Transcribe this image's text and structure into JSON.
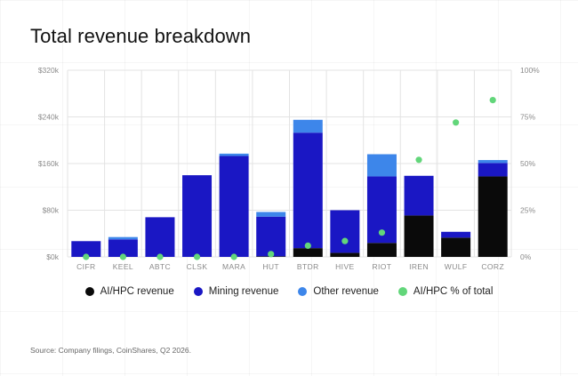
{
  "title": "Total revenue breakdown",
  "source": "Source: Company filings, CoinShares, Q2 2026.",
  "colors": {
    "ai_hpc": "#0a0a0a",
    "mining": "#1a17c4",
    "other": "#3d86ea",
    "pct": "#62d67a",
    "grid": "#e3e3e3",
    "axis_text": "#8a8a8a"
  },
  "legend": [
    {
      "label": "AI/HPC revenue",
      "color": "#0a0a0a"
    },
    {
      "label": "Mining revenue",
      "color": "#1a17c4"
    },
    {
      "label": "Other revenue",
      "color": "#3d86ea"
    },
    {
      "label": "AI/HPC % of total",
      "color": "#62d67a"
    }
  ],
  "chart_data": {
    "type": "bar",
    "stacked": true,
    "title": "Total revenue breakdown",
    "categories": [
      "CIFR",
      "KEEL",
      "ABTC",
      "CLSK",
      "MARA",
      "HUT",
      "BTDR",
      "HIVE",
      "RIOT",
      "IREN",
      "WULF",
      "CORZ"
    ],
    "series": [
      {
        "name": "AI/HPC revenue",
        "values": [
          0,
          0,
          0,
          0,
          0,
          1,
          15,
          7,
          24,
          71,
          33,
          138
        ]
      },
      {
        "name": "Mining revenue",
        "values": [
          27,
          30,
          68,
          140,
          173,
          68,
          198,
          73,
          114,
          68,
          10,
          23
        ]
      },
      {
        "name": "Other revenue",
        "values": [
          0,
          4,
          0,
          0,
          4,
          8,
          22,
          0,
          38,
          0,
          0,
          5
        ]
      },
      {
        "name": "AI/HPC % of total",
        "axis": "right",
        "values": [
          0,
          0,
          0,
          0,
          0,
          1.5,
          6,
          8.5,
          13,
          52,
          72,
          84
        ]
      }
    ],
    "y_left": {
      "min": 0,
      "max": 320,
      "ticks": [
        0,
        80,
        160,
        240,
        320
      ],
      "tick_labels": [
        "$0k",
        "$80k",
        "$160k",
        "$240k",
        "$320k"
      ]
    },
    "y_right": {
      "min": 0,
      "max": 100,
      "ticks": [
        0,
        25,
        50,
        75,
        100
      ],
      "tick_labels": [
        "0%",
        "25%",
        "50%",
        "75%",
        "100%"
      ]
    },
    "grid": true,
    "legend_position": "bottom-center"
  }
}
